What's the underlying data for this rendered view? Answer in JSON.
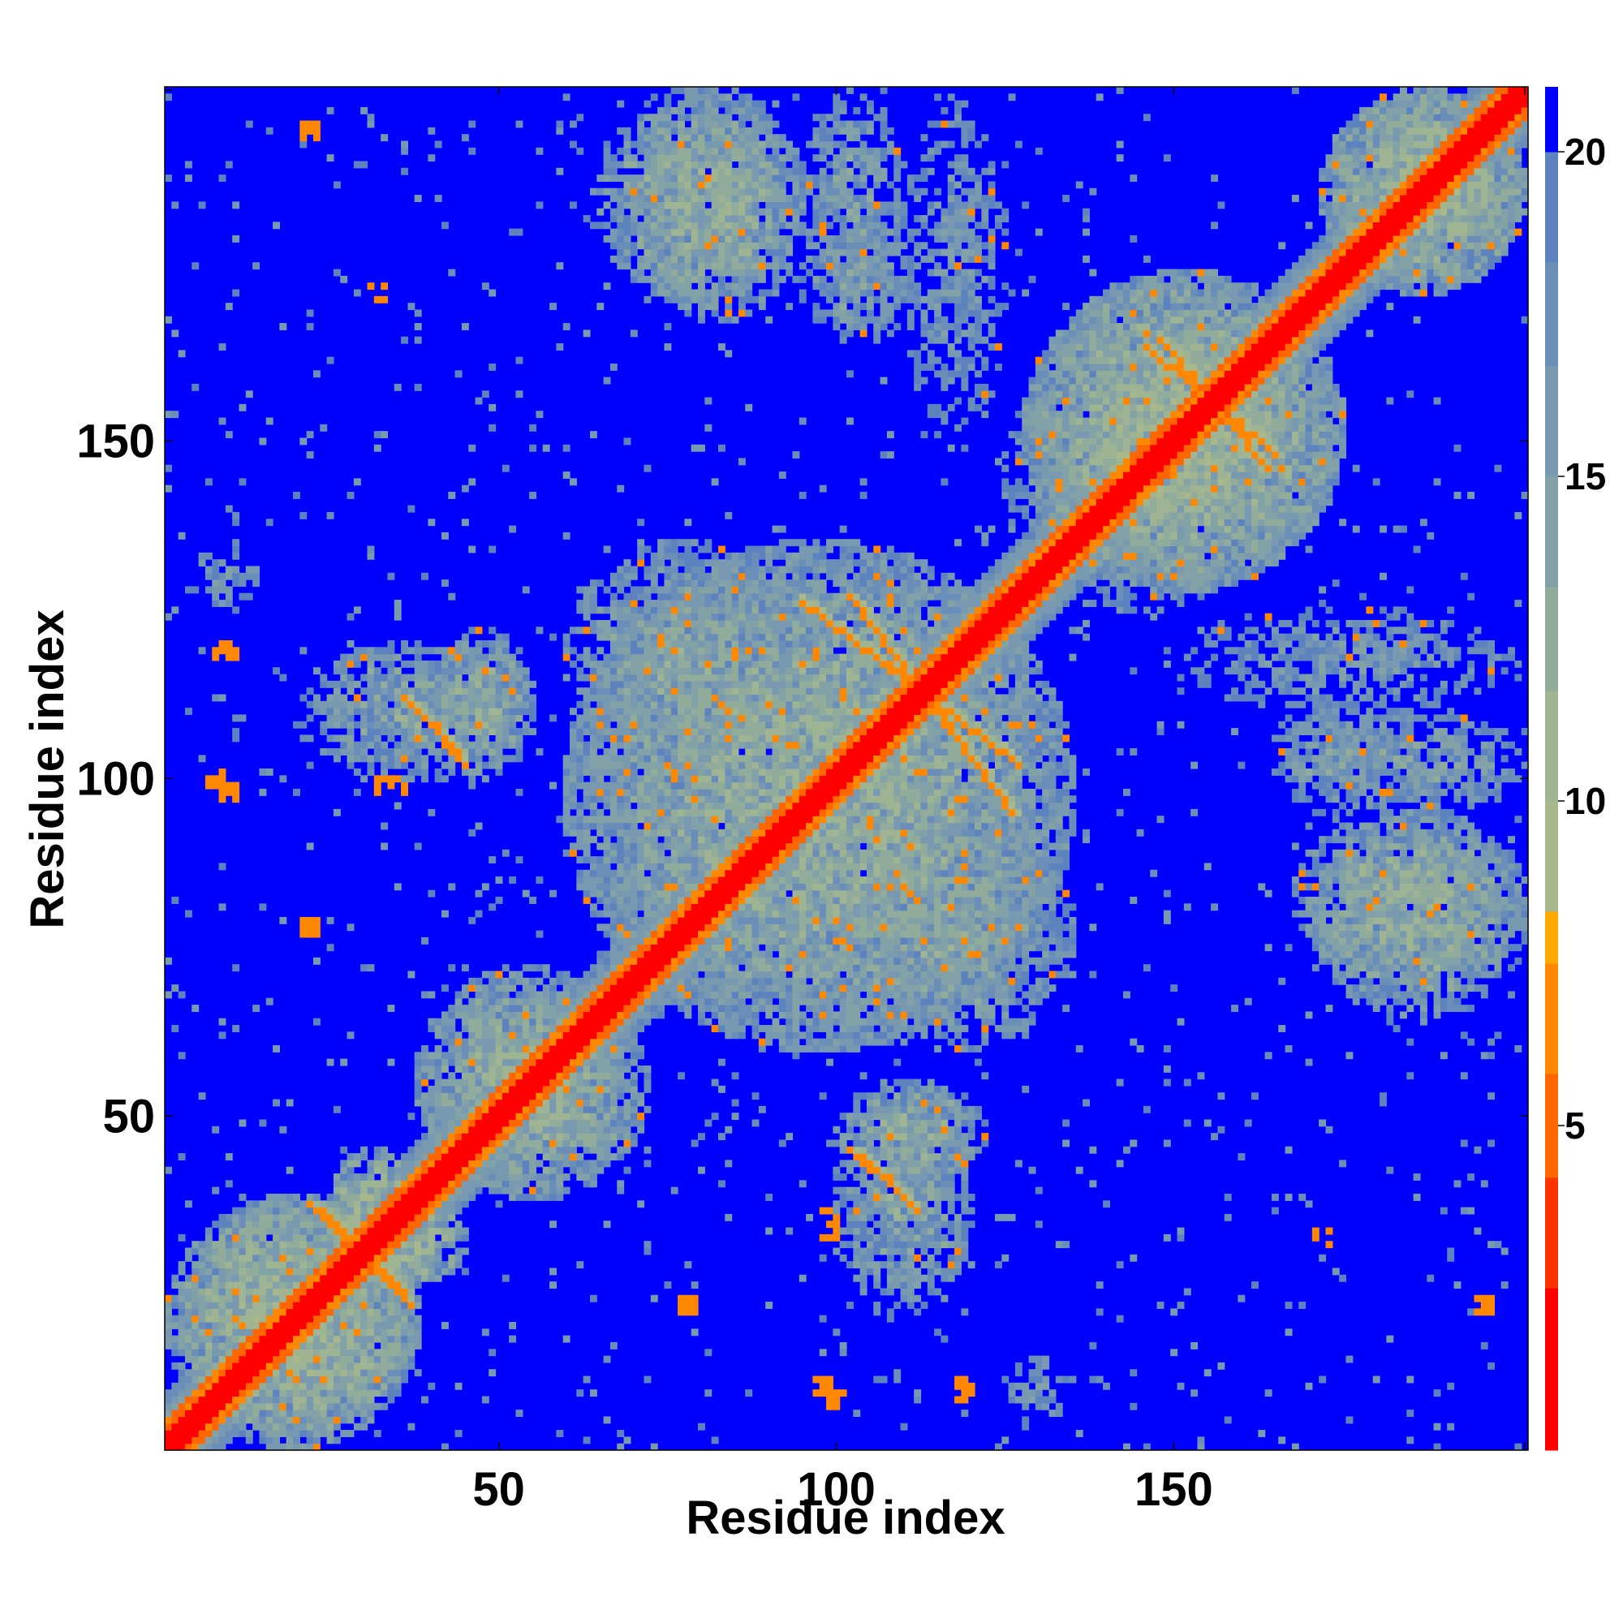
{
  "chart_data": {
    "type": "heatmap",
    "title": "",
    "xlabel": "Residue index",
    "ylabel": "Residue index",
    "n_residues": 202,
    "xlim": [
      1,
      202
    ],
    "ylim": [
      1,
      202
    ],
    "xticks": [
      50,
      100,
      150
    ],
    "yticks": [
      50,
      100,
      150
    ],
    "colorbar": {
      "ticks": [
        5,
        10,
        15,
        20
      ],
      "range": [
        0,
        21
      ],
      "levels": [
        {
          "from": 0,
          "to": 2.5,
          "color": "#ff0000"
        },
        {
          "from": 2.5,
          "to": 4.2,
          "color": "#ff3300"
        },
        {
          "from": 4.2,
          "to": 5.8,
          "color": "#ff6600"
        },
        {
          "from": 5.8,
          "to": 7.5,
          "color": "#ff8800"
        },
        {
          "from": 7.5,
          "to": 8.3,
          "color": "#ffaa00"
        },
        {
          "from": 8.3,
          "to": 10.0,
          "color": "#a8b88c"
        },
        {
          "from": 10.0,
          "to": 11.7,
          "color": "#9fb493"
        },
        {
          "from": 11.7,
          "to": 13.3,
          "color": "#92ac9c"
        },
        {
          "from": 13.3,
          "to": 15.0,
          "color": "#82a2a8"
        },
        {
          "from": 15.0,
          "to": 16.7,
          "color": "#7899b0"
        },
        {
          "from": 16.7,
          "to": 18.3,
          "color": "#6b8eb8"
        },
        {
          "from": 18.3,
          "to": 20.0,
          "color": "#5d83be"
        },
        {
          "from": 20.0,
          "to": 21.0,
          "color": "#0000ff"
        }
      ]
    },
    "background_value": 21,
    "diagonal": {
      "band_width": 2,
      "value": 1
    },
    "regions": [
      {
        "x": [
          1,
          38
        ],
        "y": [
          1,
          38
        ],
        "value": 13
      },
      {
        "x": [
          38,
          70
        ],
        "y": [
          38,
          72
        ],
        "value": 14
      },
      {
        "x": [
          60,
          135
        ],
        "y": [
          60,
          135
        ],
        "value": 14
      },
      {
        "x": [
          128,
          175
        ],
        "y": [
          128,
          175
        ],
        "value": 13
      },
      {
        "x": [
          172,
          202
        ],
        "y": [
          172,
          202
        ],
        "value": 13
      },
      {
        "x": [
          65,
          92
        ],
        "y": [
          170,
          202
        ],
        "value": 14
      },
      {
        "x": [
          95,
          110
        ],
        "y": [
          170,
          202
        ],
        "value": 16
      },
      {
        "x": [
          110,
          125
        ],
        "y": [
          150,
          202
        ],
        "value": 17
      },
      {
        "x": [
          40,
          55
        ],
        "y": [
          100,
          122
        ],
        "value": 14
      },
      {
        "x": [
          100,
          135
        ],
        "y": [
          60,
          95
        ],
        "value": 15
      },
      {
        "x": [
          100,
          120
        ],
        "y": [
          20,
          55
        ],
        "value": 15
      },
      {
        "x": [
          168,
          202
        ],
        "y": [
          70,
          95
        ],
        "value": 14
      },
      {
        "x": [
          165,
          182
        ],
        "y": [
          95,
          112
        ],
        "value": 16
      },
      {
        "x": [
          5,
          15
        ],
        "y": [
          125,
          135
        ],
        "value": 17
      },
      {
        "x": [
          125,
          160
        ],
        "y": [
          130,
          160
        ],
        "value": 15
      },
      {
        "x": [
          25,
          45
        ],
        "y": [
          25,
          38
        ],
        "value": 12
      }
    ],
    "contact_lines": [
      {
        "from": [
          22,
          37
        ],
        "to": [
          36,
          24
        ],
        "value": 6
      },
      {
        "from": [
          102,
          127
        ],
        "to": [
          126,
          95
        ],
        "value": 6
      },
      {
        "from": [
          148,
          165
        ],
        "to": [
          163,
          147
        ],
        "value": 6
      },
      {
        "from": [
          36,
          112
        ],
        "to": [
          44,
          104
        ],
        "value": 6
      },
      {
        "from": [
          102,
          45
        ],
        "to": [
          110,
          38
        ],
        "value": 6
      }
    ],
    "contact_spots": [
      {
        "x": 8,
        "y": 100,
        "value": 6
      },
      {
        "x": 33,
        "y": 99,
        "value": 6
      },
      {
        "x": 22,
        "y": 80,
        "value": 6
      },
      {
        "x": 99,
        "y": 35,
        "value": 6
      },
      {
        "x": 98,
        "y": 10,
        "value": 6
      },
      {
        "x": 78,
        "y": 22,
        "value": 6
      },
      {
        "x": 118,
        "y": 10,
        "value": 6
      },
      {
        "x": 197,
        "y": 22,
        "value": 6
      },
      {
        "x": 22,
        "y": 196,
        "value": 6
      },
      {
        "x": 32,
        "y": 172,
        "value": 6
      },
      {
        "x": 9,
        "y": 119,
        "value": 6
      }
    ],
    "noise_density": 0.1
  }
}
